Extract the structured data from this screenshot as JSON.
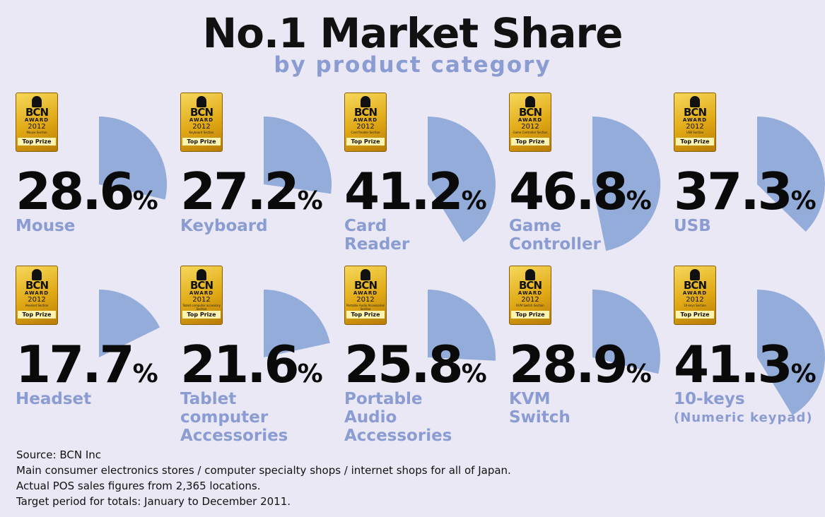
{
  "title": "No.1 Market Share",
  "subtitle": "by product category",
  "badge": {
    "brand": "BCN",
    "award": "AWARD",
    "year": "2012",
    "prize": "Top Prize"
  },
  "chart_data": {
    "type": "pie",
    "title": "No.1 Market Share",
    "subtitle": "by product category",
    "unit": "%",
    "slice_color": "#93acd9",
    "categories": [
      "Mouse",
      "Keyboard",
      "Card Reader",
      "Game Controller",
      "USB",
      "Headset",
      "Tablet computer Accessories",
      "Portable Audio Accessories",
      "KVM Switch",
      "10-keys (Numeric keypad)"
    ],
    "values": [
      28.6,
      27.2,
      41.2,
      46.8,
      37.3,
      17.7,
      21.6,
      25.8,
      28.9,
      41.3
    ]
  },
  "items": [
    {
      "value": "28.6",
      "pct": "%",
      "label": "Mouse",
      "section": "Mouse Section"
    },
    {
      "value": "27.2",
      "pct": "%",
      "label": "Keyboard",
      "section": "Keyboard Section"
    },
    {
      "value": "41.2",
      "pct": "%",
      "label": "Card\nReader",
      "section": "Card Reader Section"
    },
    {
      "value": "46.8",
      "pct": "%",
      "label": "Game\nController",
      "section": "Game Controller Section"
    },
    {
      "value": "37.3",
      "pct": "%",
      "label": "USB",
      "section": "USB Section"
    },
    {
      "value": "17.7",
      "pct": "%",
      "label": "Headset",
      "section": "Headset Section"
    },
    {
      "value": "21.6",
      "pct": "%",
      "label": "Tablet\ncomputer\nAccessories",
      "section": "Tablet computer accessory Section"
    },
    {
      "value": "25.8",
      "pct": "%",
      "label": "Portable\nAudio\nAccessories",
      "section": "Portable Audio Accessories Section"
    },
    {
      "value": "28.9",
      "pct": "%",
      "label": "KVM\nSwitch",
      "section": "KVM Switch Section"
    },
    {
      "value": "41.3",
      "pct": "%",
      "label": "10-keys",
      "label2": "(Numeric keypad)",
      "section": "10-keys Section"
    }
  ],
  "footer": [
    "Source: BCN Inc",
    "Main consumer electronics stores / computer specialty shops / internet shops for all of Japan.",
    "Actual POS sales figures from 2,365 locations.",
    "Target period for totals: January to December 2011."
  ]
}
